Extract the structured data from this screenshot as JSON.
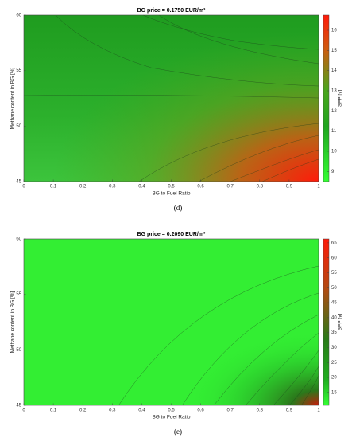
{
  "chart_data": [
    {
      "type": "heatmap",
      "title": "BG price = 0.1750 EUR/m³",
      "xlabel": "BG to Fuel Ratio",
      "ylabel": "Methane content in BG [%]",
      "caption": "(d)",
      "colorbar_label": "SPP [y]",
      "xlim": [
        0,
        1
      ],
      "xticks": [
        0,
        0.1,
        0.2,
        0.3,
        0.4,
        0.5,
        0.6,
        0.7,
        0.8,
        0.9,
        1
      ],
      "ylim": [
        45,
        60
      ],
      "yticks": [
        45,
        50,
        55,
        60
      ],
      "clim": [
        8.5,
        16.75
      ],
      "cticks": [
        9,
        10,
        11,
        12,
        13,
        14,
        15,
        16
      ]
    },
    {
      "type": "heatmap",
      "title": "BG price = 0.2090 EUR/m³",
      "xlabel": "BG to Fuel Ratio",
      "ylabel": "Methane content in BG [%]",
      "caption": "(e)",
      "colorbar_label": "SPP [y]",
      "xlim": [
        0,
        1
      ],
      "xticks": [
        0,
        0.1,
        0.2,
        0.3,
        0.4,
        0.5,
        0.6,
        0.7,
        0.8,
        0.9,
        1
      ],
      "ylim": [
        45,
        60
      ],
      "yticks": [
        45,
        50,
        55,
        60
      ],
      "clim": [
        10.7,
        66.3
      ],
      "cticks": [
        15,
        20,
        25,
        30,
        35,
        40,
        45,
        50,
        55,
        60,
        65
      ]
    }
  ]
}
